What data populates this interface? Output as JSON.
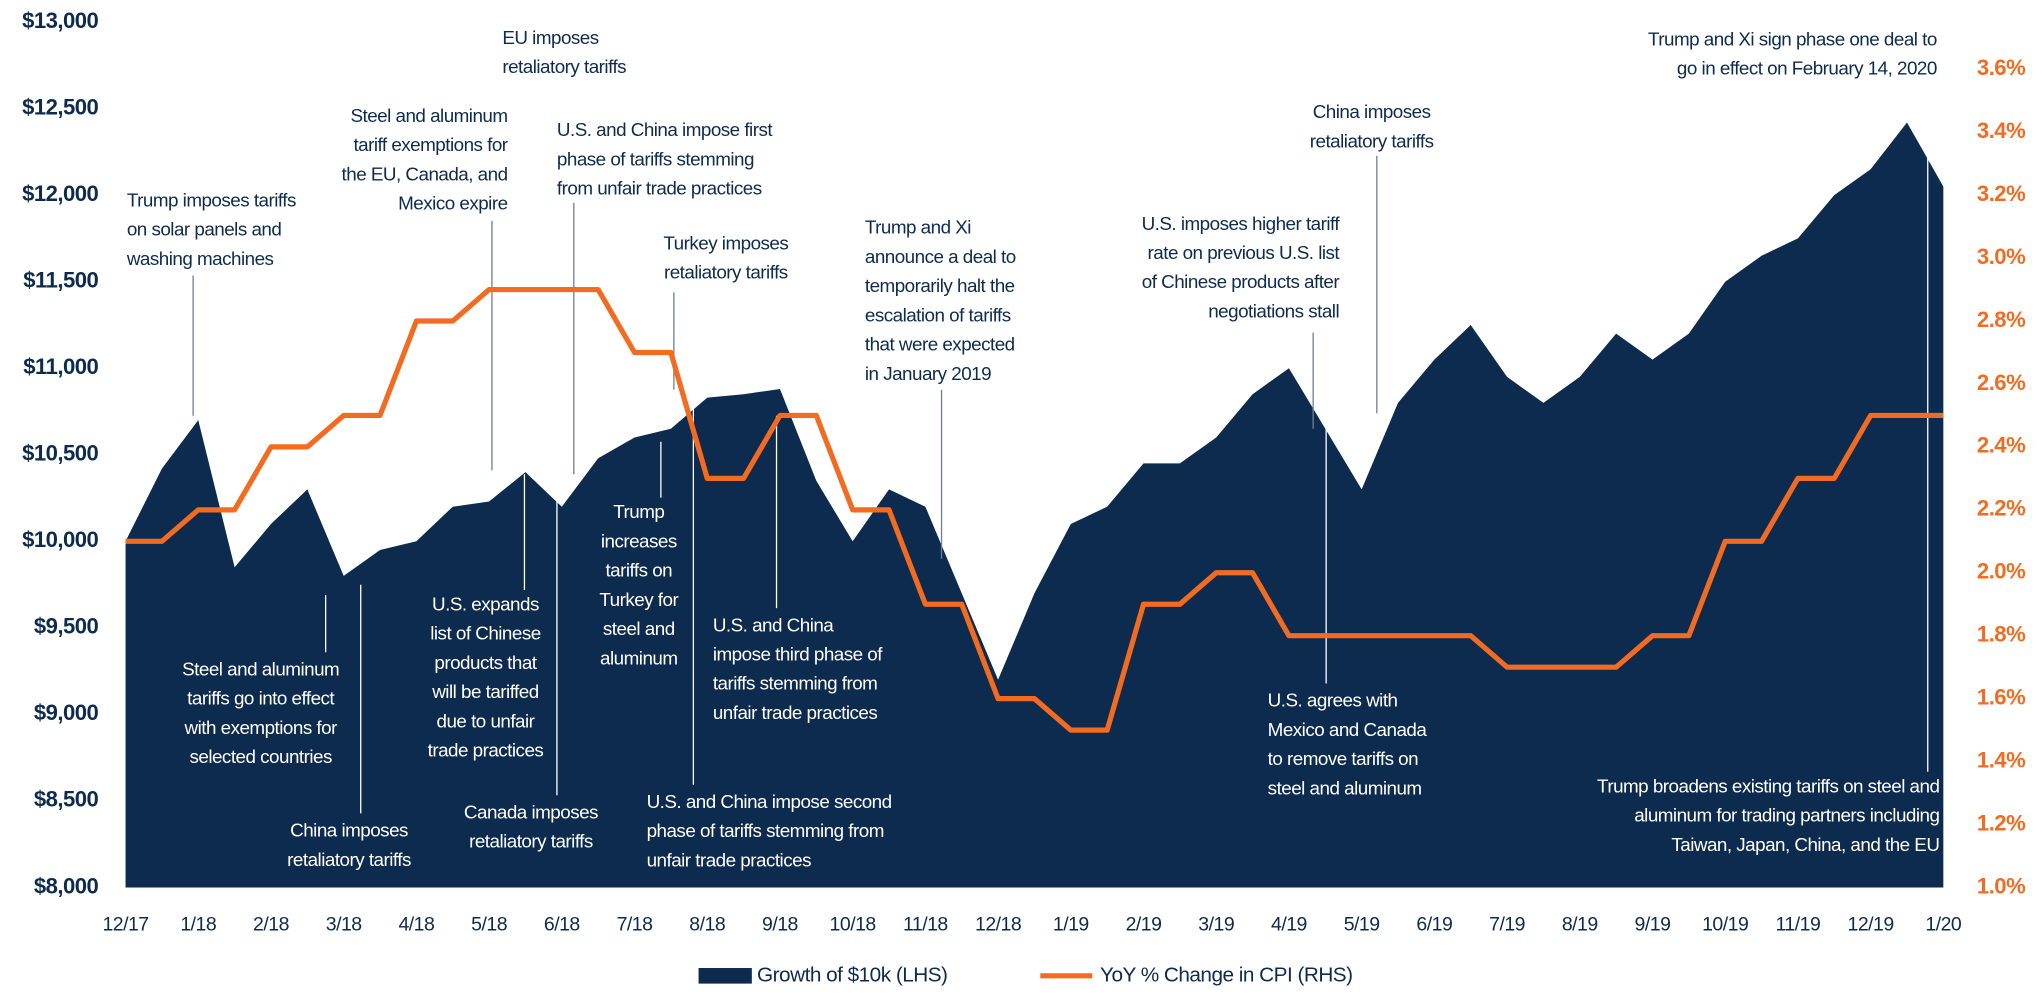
{
  "chart_data": {
    "type": "area_line",
    "categories": [
      "12/17",
      null,
      "1/18",
      null,
      "2/18",
      null,
      "3/18",
      null,
      "4/18",
      null,
      "5/18",
      null,
      "6/18",
      null,
      "7/18",
      null,
      "8/18",
      null,
      "9/18",
      null,
      "10/18",
      null,
      "11/18",
      null,
      "12/18",
      null,
      "1/19",
      null,
      "2/19",
      null,
      "3/19",
      null,
      "4/19",
      null,
      "5/19",
      null,
      "6/19",
      null,
      "7/19",
      null,
      "8/19",
      null,
      "9/19",
      null,
      "10/19",
      null,
      "11/19",
      null,
      "12/19",
      null,
      "1/20"
    ],
    "series": [
      {
        "name": "Growth of $10k (LHS)",
        "color": "#0d2b4e",
        "axis": "y",
        "values": [
          10000,
          10420,
          10700,
          9850,
          10100,
          10300,
          9800,
          9950,
          10000,
          10200,
          10230,
          10400,
          10200,
          10480,
          10600,
          10650,
          10830,
          10850,
          10880,
          10350,
          10000,
          10300,
          10200,
          9700,
          9200,
          9700,
          10100,
          10200,
          10450,
          10450,
          10600,
          10850,
          11000,
          10650,
          10300,
          10800,
          11050,
          11250,
          10950,
          10800,
          10950,
          11200,
          11050,
          11200,
          11500,
          11650,
          11750,
          12000,
          12150,
          12420,
          12050
        ]
      },
      {
        "name": "YoY % Change in CPI (RHS)",
        "color": "#f26b21",
        "axis": "y2",
        "values": [
          2.1,
          2.1,
          2.2,
          2.2,
          2.4,
          2.4,
          2.5,
          2.5,
          2.8,
          2.8,
          2.9,
          2.9,
          2.9,
          2.9,
          2.7,
          2.7,
          2.3,
          2.3,
          2.5,
          2.5,
          2.2,
          2.2,
          1.9,
          1.9,
          1.6,
          1.6,
          1.5,
          1.5,
          1.9,
          1.9,
          2.0,
          2.0,
          1.8,
          1.8,
          1.8,
          1.8,
          1.8,
          1.8,
          1.7,
          1.7,
          1.7,
          1.7,
          1.8,
          1.8,
          2.1,
          2.1,
          2.3,
          2.3,
          2.5,
          2.5,
          2.5
        ]
      }
    ],
    "ylim": [
      8000,
      13000
    ],
    "yticks": [
      {
        "value": 8000,
        "label": "$8,000"
      },
      {
        "value": 8500,
        "label": "$8,500"
      },
      {
        "value": 9000,
        "label": "$9,000"
      },
      {
        "value": 9500,
        "label": "$9,500"
      },
      {
        "value": 10000,
        "label": "$10,000"
      },
      {
        "value": 10500,
        "label": "$10,500"
      },
      {
        "value": 11000,
        "label": "$11,000"
      },
      {
        "value": 11500,
        "label": "$11,500"
      },
      {
        "value": 12000,
        "label": "$12,000"
      },
      {
        "value": 12500,
        "label": "$12,500"
      },
      {
        "value": 13000,
        "label": "$13,000"
      }
    ],
    "y2lim": [
      1.0,
      3.75
    ],
    "y2ticks": [
      {
        "value": 1.0,
        "label": "1.0%"
      },
      {
        "value": 1.2,
        "label": "1.2%"
      },
      {
        "value": 1.4,
        "label": "1.4%"
      },
      {
        "value": 1.6,
        "label": "1.6%"
      },
      {
        "value": 1.8,
        "label": "1.8%"
      },
      {
        "value": 2.0,
        "label": "2.0%"
      },
      {
        "value": 2.2,
        "label": "2.2%"
      },
      {
        "value": 2.4,
        "label": "2.4%"
      },
      {
        "value": 2.6,
        "label": "2.6%"
      },
      {
        "value": 2.8,
        "label": "2.8%"
      },
      {
        "value": 3.0,
        "label": "3.0%"
      },
      {
        "value": 3.2,
        "label": "3.2%"
      },
      {
        "value": 3.4,
        "label": "3.4%"
      },
      {
        "value": 3.6,
        "label": "3.6%"
      }
    ],
    "grid": false,
    "legend": "bottom",
    "annotations": [
      {
        "lines": [
          "Trump imposes tariffs",
          "on solar panels and",
          "washing machines"
        ]
      },
      {
        "lines": [
          "Steel and aluminum",
          "tariff exemptions for",
          "the EU, Canada, and",
          "Mexico expire"
        ]
      },
      {
        "lines": [
          "EU imposes",
          "retaliatory tariffs"
        ]
      },
      {
        "lines": [
          "U.S. and China impose first",
          "phase of tariffs stemming",
          "from unfair trade practices"
        ]
      },
      {
        "lines": [
          "Turkey imposes",
          "retaliatory tariffs"
        ]
      },
      {
        "lines": [
          "Trump and Xi",
          "announce a deal to",
          "temporarily halt the",
          "escalation of tariffs",
          "that were expected",
          "in January 2019"
        ]
      },
      {
        "lines": [
          "U.S. imposes higher tariff",
          "rate on previous U.S. list",
          "of Chinese products after",
          "negotiations stall"
        ]
      },
      {
        "lines": [
          "China imposes",
          "retaliatory tariffs"
        ]
      },
      {
        "lines": [
          "Trump and Xi sign phase one deal to",
          "go in effect on February 14, 2020"
        ]
      },
      {
        "lines": [
          "Steel and aluminum",
          "tariffs go into effect",
          "with exemptions for",
          "selected countries"
        ]
      },
      {
        "lines": [
          "China imposes",
          "retaliatory tariffs"
        ]
      },
      {
        "lines": [
          "U.S. expands",
          "list of Chinese",
          "products that",
          "will be tariffed",
          "due to unfair",
          "trade practices"
        ]
      },
      {
        "lines": [
          "Canada imposes",
          "retaliatory tariffs"
        ]
      },
      {
        "lines": [
          "Trump",
          "increases",
          "tariffs on",
          "Turkey for",
          "steel and",
          "aluminum"
        ]
      },
      {
        "lines": [
          "U.S. and China impose second",
          "phase of tariffs stemming from",
          "unfair trade practices"
        ]
      },
      {
        "lines": [
          "U.S. and China",
          "impose third phase of",
          "tariffs stemming from",
          "unfair trade practices"
        ]
      },
      {
        "lines": [
          "U.S. agrees with",
          "Mexico and Canada",
          "to remove tariffs on",
          "steel and aluminum"
        ]
      },
      {
        "lines": [
          "Trump broadens existing tariffs on steel and",
          "aluminum for trading partners including",
          "Taiwan, Japan, China, and the EU"
        ]
      }
    ]
  }
}
